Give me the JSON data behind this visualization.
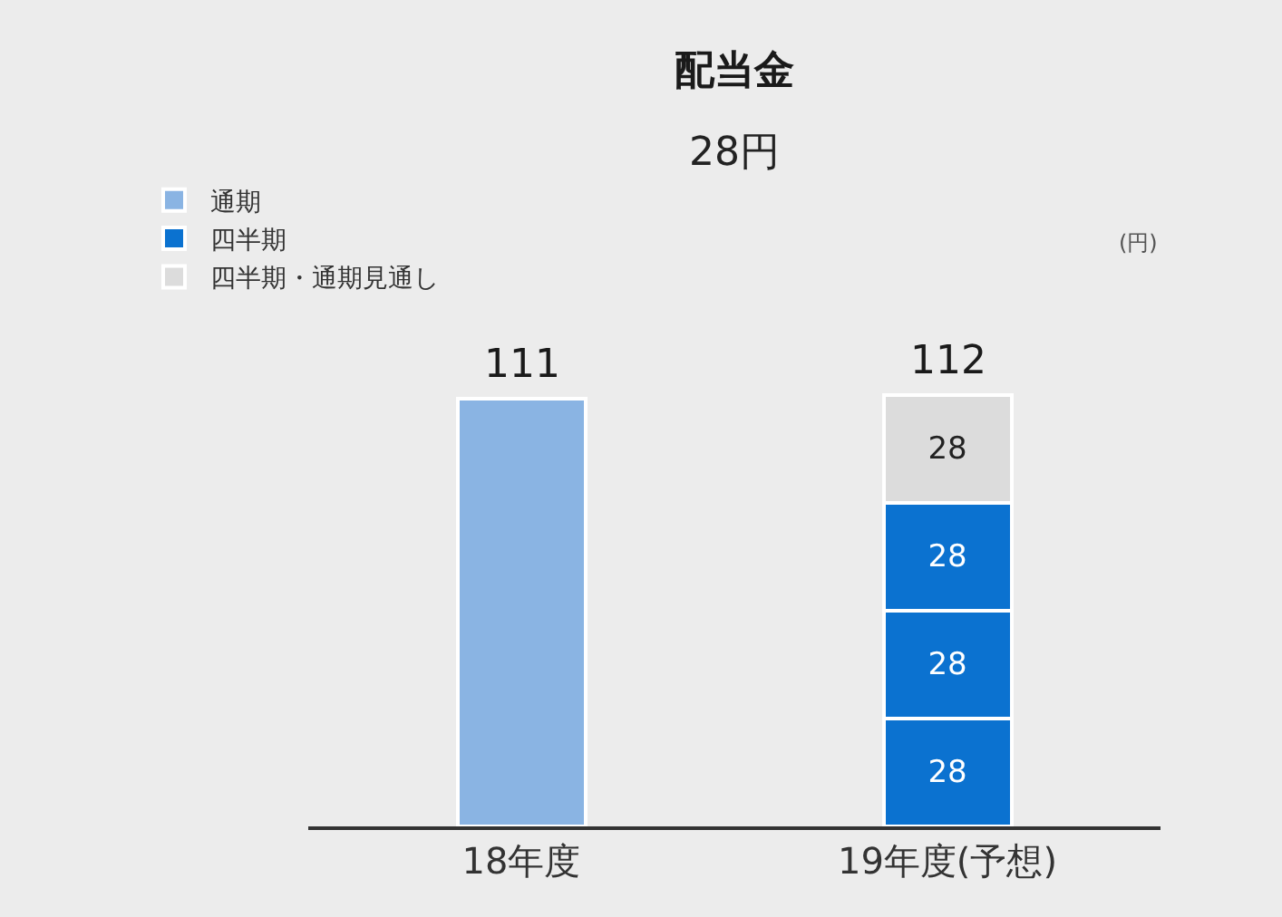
{
  "chart_data": {
    "type": "bar",
    "title": "配当金",
    "subtitle": "28円",
    "annotations": [
      "(円)"
    ],
    "categories": [
      "18年度",
      "19年度(予想)"
    ],
    "stacked": true,
    "series": [
      {
        "name": "通期",
        "color": "#8ab4e3",
        "values": [
          111,
          null
        ]
      },
      {
        "name": "四半期",
        "color": "#0b72d0",
        "values": [
          null,
          28
        ],
        "value_labels": [
          null,
          "28"
        ]
      },
      {
        "color": "#0b72d0",
        "values": [
          null,
          28
        ],
        "value_labels": [
          null,
          "28"
        ]
      },
      {
        "color": "#0b72d0",
        "values": [
          null,
          28
        ],
        "value_labels": [
          null,
          "28"
        ]
      },
      {
        "name": "四半期・通期見通し",
        "color": "#dcdcdc",
        "values": [
          null,
          28
        ],
        "value_labels": [
          null,
          "28"
        ]
      }
    ],
    "totals": [
      "111",
      "112"
    ],
    "legend": "top left"
  }
}
